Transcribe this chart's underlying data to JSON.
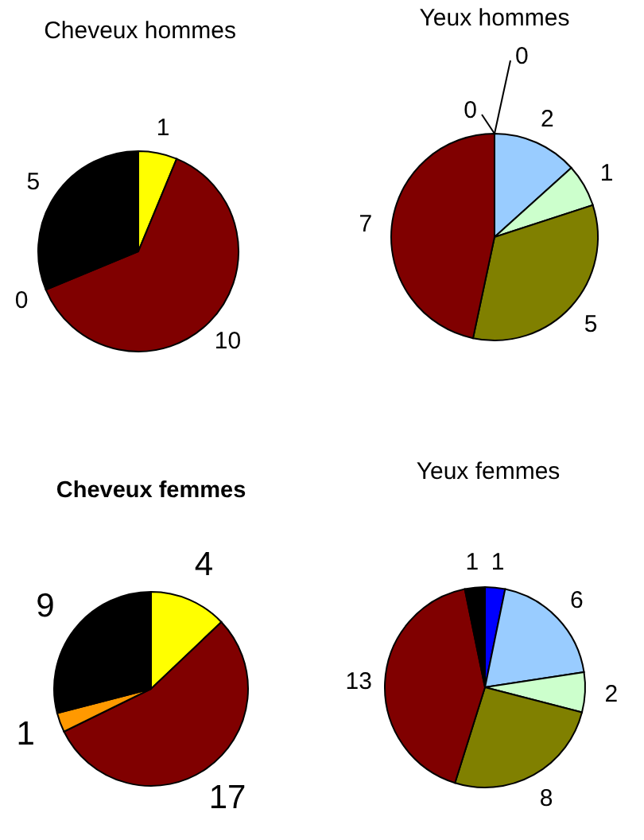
{
  "chart_data": [
    {
      "type": "pie",
      "title": "Cheveux hommes",
      "categories": [
        null,
        null,
        null,
        null
      ],
      "values": [
        1,
        10,
        0,
        5
      ],
      "colors": [
        "#ffff00",
        "#800000",
        "#ff9900",
        "#000000"
      ],
      "value_labels": [
        "1",
        "10",
        "0",
        "5"
      ]
    },
    {
      "type": "pie",
      "title": "Yeux hommes",
      "categories": [
        null,
        null,
        null,
        null,
        null,
        null
      ],
      "values": [
        0,
        2,
        1,
        5,
        7,
        0
      ],
      "colors": [
        "#0000ff",
        "#99ccff",
        "#ccffcc",
        "#808000",
        "#800000",
        "#000000"
      ],
      "value_labels": [
        "0",
        "2",
        "1",
        "5",
        "7",
        "0"
      ]
    },
    {
      "type": "pie",
      "title": "Cheveux femmes",
      "categories": [
        null,
        null,
        null,
        null
      ],
      "values": [
        4,
        17,
        1,
        9
      ],
      "colors": [
        "#ffff00",
        "#800000",
        "#ff9900",
        "#000000"
      ],
      "data_labels": true
    },
    {
      "type": "pie",
      "title": "Yeux femmes",
      "categories": [
        null,
        null,
        null,
        null,
        null,
        null
      ],
      "values": [
        1,
        6,
        2,
        8,
        13,
        1
      ],
      "colors": [
        "#0000ff",
        "#99ccff",
        "#ccffcc",
        "#808000",
        "#800000",
        "#000000"
      ],
      "data_labels": true
    }
  ]
}
